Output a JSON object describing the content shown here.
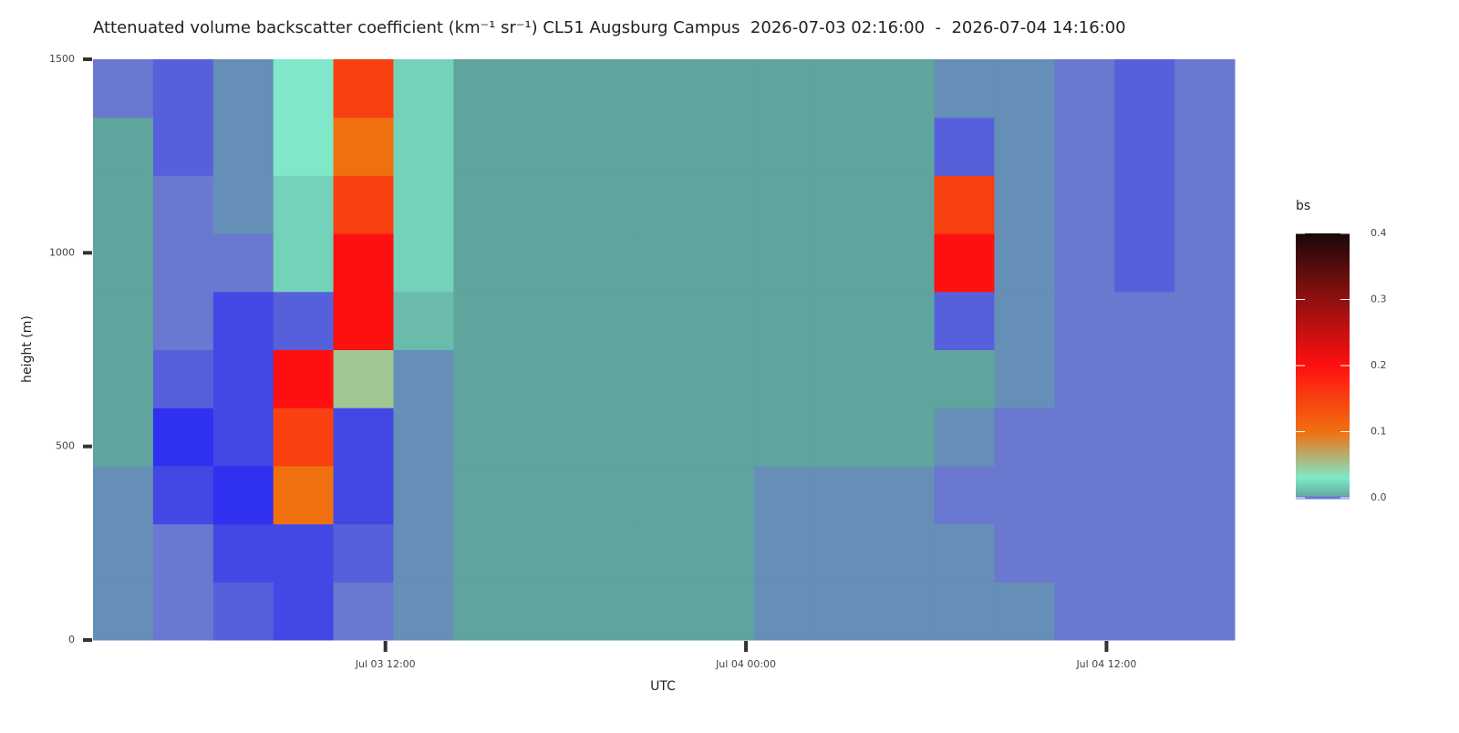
{
  "chart_data": {
    "type": "heatmap",
    "title": "Attenuated volume backscatter coefficient (km⁻¹ sr⁻¹) CL51 Augsburg Campus  2026-07-03 02:16:00  -  2026-07-04 14:16:00",
    "x_label": "UTC",
    "y_label": "height (m)",
    "colorbar_title": "bs",
    "x": [
      "2026-07-03 02:16",
      "2026-07-03 04:16",
      "2026-07-03 06:16",
      "2026-07-03 08:16",
      "2026-07-03 10:16",
      "2026-07-03 12:16",
      "2026-07-03 14:16",
      "2026-07-03 16:16",
      "2026-07-03 18:16",
      "2026-07-03 20:16",
      "2026-07-03 22:16",
      "2026-07-04 00:16",
      "2026-07-04 02:16",
      "2026-07-04 04:16",
      "2026-07-04 06:16",
      "2026-07-04 08:16",
      "2026-07-04 10:16",
      "2026-07-04 12:16",
      "2026-07-04 14:16"
    ],
    "y": [
      0,
      150,
      300,
      450,
      600,
      750,
      900,
      1050,
      1200,
      1350
    ],
    "z": [
      [
        -0.01,
        -0.02,
        -0.03,
        -0.04,
        -0.02,
        -0.01,
        0,
        0,
        0,
        0,
        0,
        -0.01,
        -0.01,
        -0.01,
        -0.01,
        -0.01,
        -0.02,
        -0.02,
        -0.02
      ],
      [
        -0.01,
        -0.02,
        -0.04,
        -0.04,
        -0.03,
        -0.01,
        0,
        0,
        0,
        0,
        0,
        -0.01,
        -0.01,
        -0.01,
        -0.01,
        -0.02,
        -0.02,
        -0.02,
        -0.02
      ],
      [
        -0.01,
        -0.04,
        -0.05,
        0.1,
        -0.04,
        -0.01,
        0,
        0,
        0,
        0,
        0,
        -0.01,
        -0.01,
        -0.01,
        -0.02,
        -0.02,
        -0.02,
        -0.02,
        -0.02
      ],
      [
        0,
        -0.05,
        -0.04,
        0.15,
        -0.04,
        -0.01,
        0,
        0,
        0,
        0,
        0,
        0,
        0,
        0,
        -0.01,
        -0.02,
        -0.02,
        -0.02,
        -0.02
      ],
      [
        0,
        -0.03,
        -0.04,
        0.2,
        0.05,
        -0.01,
        0,
        0,
        0,
        0,
        0,
        0,
        0,
        0,
        0,
        -0.01,
        -0.02,
        -0.02,
        -0.02
      ],
      [
        0,
        -0.02,
        -0.04,
        -0.03,
        0.2,
        0.01,
        0,
        0,
        0,
        0,
        0,
        0,
        0,
        0,
        -0.03,
        -0.01,
        -0.02,
        -0.02,
        -0.02
      ],
      [
        0,
        -0.02,
        -0.02,
        0.02,
        0.2,
        0.02,
        0,
        0,
        0,
        0,
        0,
        0,
        0,
        0,
        0.2,
        -0.01,
        -0.02,
        -0.03,
        -0.02
      ],
      [
        0,
        -0.02,
        -0.01,
        0.02,
        0.15,
        0.02,
        0,
        0,
        0,
        0,
        0,
        0,
        0,
        0,
        0.15,
        -0.01,
        -0.02,
        -0.03,
        -0.02
      ],
      [
        0,
        -0.03,
        -0.01,
        0.03,
        0.1,
        0.02,
        0,
        0,
        0,
        0,
        0,
        0,
        0,
        0,
        -0.03,
        -0.01,
        -0.02,
        -0.03,
        -0.02
      ],
      [
        -0.02,
        -0.03,
        -0.01,
        0.03,
        0.15,
        0.02,
        0,
        0,
        0,
        0,
        0,
        0,
        0,
        0,
        -0.01,
        -0.01,
        -0.02,
        -0.03,
        -0.02
      ]
    ],
    "xlim": [
      "2026-07-03 02:16",
      "2026-07-04 16:16"
    ],
    "xticks": [
      {
        "value": "2026-07-03 12:00",
        "label": "Jul 03 12:00"
      },
      {
        "value": "2026-07-04 00:00",
        "label": "Jul 04 00:00"
      },
      {
        "value": "2026-07-04 12:00",
        "label": "Jul 04 12:00"
      }
    ],
    "ylim": [
      0,
      1500
    ],
    "yticks": [
      0,
      500,
      1000,
      1500
    ],
    "clim": [
      0,
      0.4
    ],
    "cticks": [
      {
        "value": 0,
        "label": "0.0"
      },
      0.1,
      0.2,
      0.3,
      0.4
    ],
    "colorscale": [
      [
        -0.05,
        "#3030f0"
      ],
      [
        -0.02,
        "#6a78d0"
      ],
      [
        0,
        "#5fa59d"
      ],
      [
        0.03,
        "#80e8c8"
      ],
      [
        0.1,
        "#f07010"
      ],
      [
        0.2,
        "#ff1010"
      ],
      [
        0.3,
        "#901010"
      ],
      [
        0.4,
        "#1a0808"
      ]
    ]
  }
}
